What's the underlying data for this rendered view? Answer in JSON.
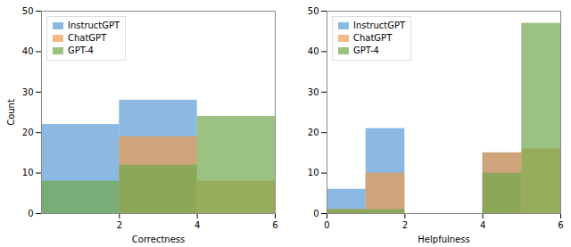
{
  "chart_data": [
    {
      "type": "histogram",
      "xlabel": "Correctness",
      "ylabel": "Count",
      "bins": [
        0,
        2,
        4,
        6
      ],
      "series": [
        {
          "name": "InstructGPT",
          "color": "#5b9bd5",
          "values": [
            22,
            28,
            0
          ]
        },
        {
          "name": "ChatGPT",
          "color": "#ed9b4f",
          "values": [
            0,
            19,
            8
          ]
        },
        {
          "name": "GPT-4",
          "color": "#70a84b",
          "values": [
            8,
            12,
            24
          ]
        }
      ],
      "xlim": [
        0,
        6
      ],
      "xticks": [
        2,
        4,
        6
      ],
      "ylim": [
        0,
        50
      ],
      "yticks": [
        0,
        10,
        20,
        30,
        40,
        50
      ],
      "legend": "upper left"
    },
    {
      "type": "histogram",
      "xlabel": "Helpfulness",
      "bins": [
        0,
        1,
        2,
        4,
        5,
        6
      ],
      "series": [
        {
          "name": "InstructGPT",
          "color": "#5b9bd5",
          "values": [
            6,
            21,
            0,
            15,
            0
          ]
        },
        {
          "name": "ChatGPT",
          "color": "#ed9b4f",
          "values": [
            1,
            10,
            0,
            15,
            16
          ]
        },
        {
          "name": "GPT-4",
          "color": "#70a84b",
          "values": [
            1,
            1,
            0,
            10,
            47
          ]
        }
      ],
      "xlim": [
        0,
        6
      ],
      "xticks": [
        0,
        2,
        4,
        6
      ],
      "ylim": [
        0,
        50
      ],
      "yticks": [
        0,
        10,
        20,
        30,
        40,
        50
      ],
      "legend": "upper left"
    }
  ]
}
